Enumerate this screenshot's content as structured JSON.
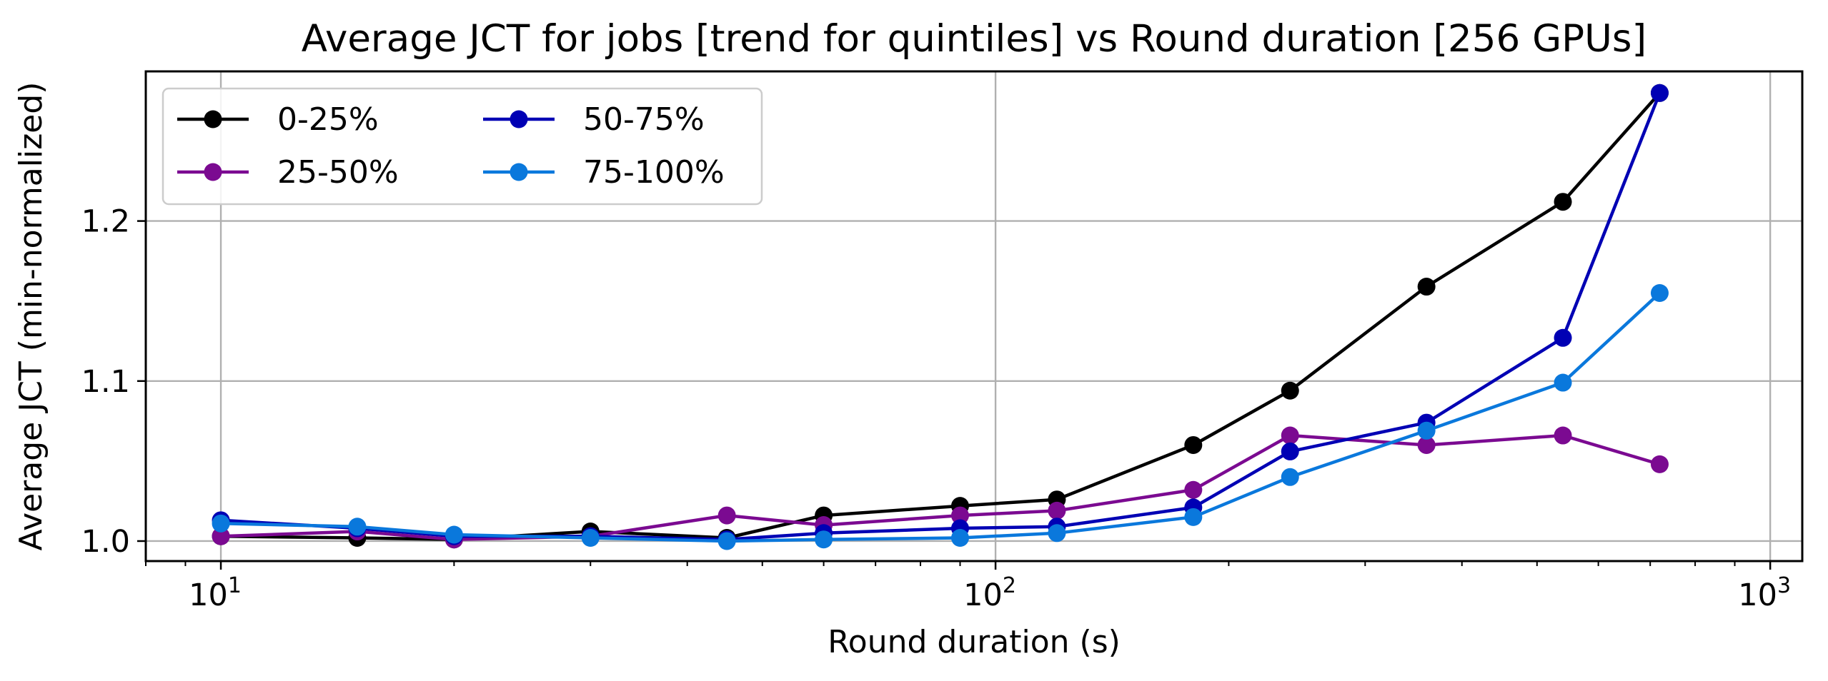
{
  "chart_data": {
    "type": "line",
    "title": "Average JCT for jobs [trend for quintiles] vs Round duration [256 GPUs]",
    "xlabel": "Round duration (s)",
    "ylabel": "Average JCT (min-normalized)",
    "xscale": "log",
    "xlim": [
      8,
      1100
    ],
    "ylim": [
      0.9875,
      1.2935
    ],
    "x_ticks": [
      {
        "value": 10,
        "base": "10",
        "exp": "1"
      },
      {
        "value": 100,
        "base": "10",
        "exp": "2"
      },
      {
        "value": 1000,
        "base": "10",
        "exp": "3"
      }
    ],
    "y_ticks": [
      {
        "value": 1.0,
        "label": "1.0"
      },
      {
        "value": 1.1,
        "label": "1.1"
      },
      {
        "value": 1.2,
        "label": "1.2"
      }
    ],
    "grid": true,
    "legend": {
      "placement": "top-left",
      "columns": 2
    },
    "x": [
      10,
      15,
      20,
      30,
      45,
      60,
      90,
      120,
      180,
      240,
      360,
      540,
      720
    ],
    "series": [
      {
        "name": "0-25%",
        "color": "#000000",
        "values": [
          1.003,
          1.002,
          1.001,
          1.006,
          1.002,
          1.016,
          1.022,
          1.026,
          1.06,
          1.094,
          1.159,
          1.212,
          1.28
        ]
      },
      {
        "name": "25-50%",
        "color": "#7b0a91",
        "values": [
          1.003,
          1.006,
          1.001,
          1.003,
          1.016,
          1.01,
          1.016,
          1.019,
          1.032,
          1.066,
          1.06,
          1.066,
          1.048
        ]
      },
      {
        "name": "50-75%",
        "color": "#0000b4",
        "values": [
          1.013,
          1.008,
          1.003,
          1.003,
          1.001,
          1.005,
          1.008,
          1.009,
          1.021,
          1.056,
          1.074,
          1.127,
          1.28
        ]
      },
      {
        "name": "75-100%",
        "color": "#0a78dc",
        "values": [
          1.011,
          1.009,
          1.004,
          1.002,
          1.0,
          1.001,
          1.002,
          1.005,
          1.015,
          1.04,
          1.069,
          1.099,
          1.155
        ]
      }
    ]
  }
}
